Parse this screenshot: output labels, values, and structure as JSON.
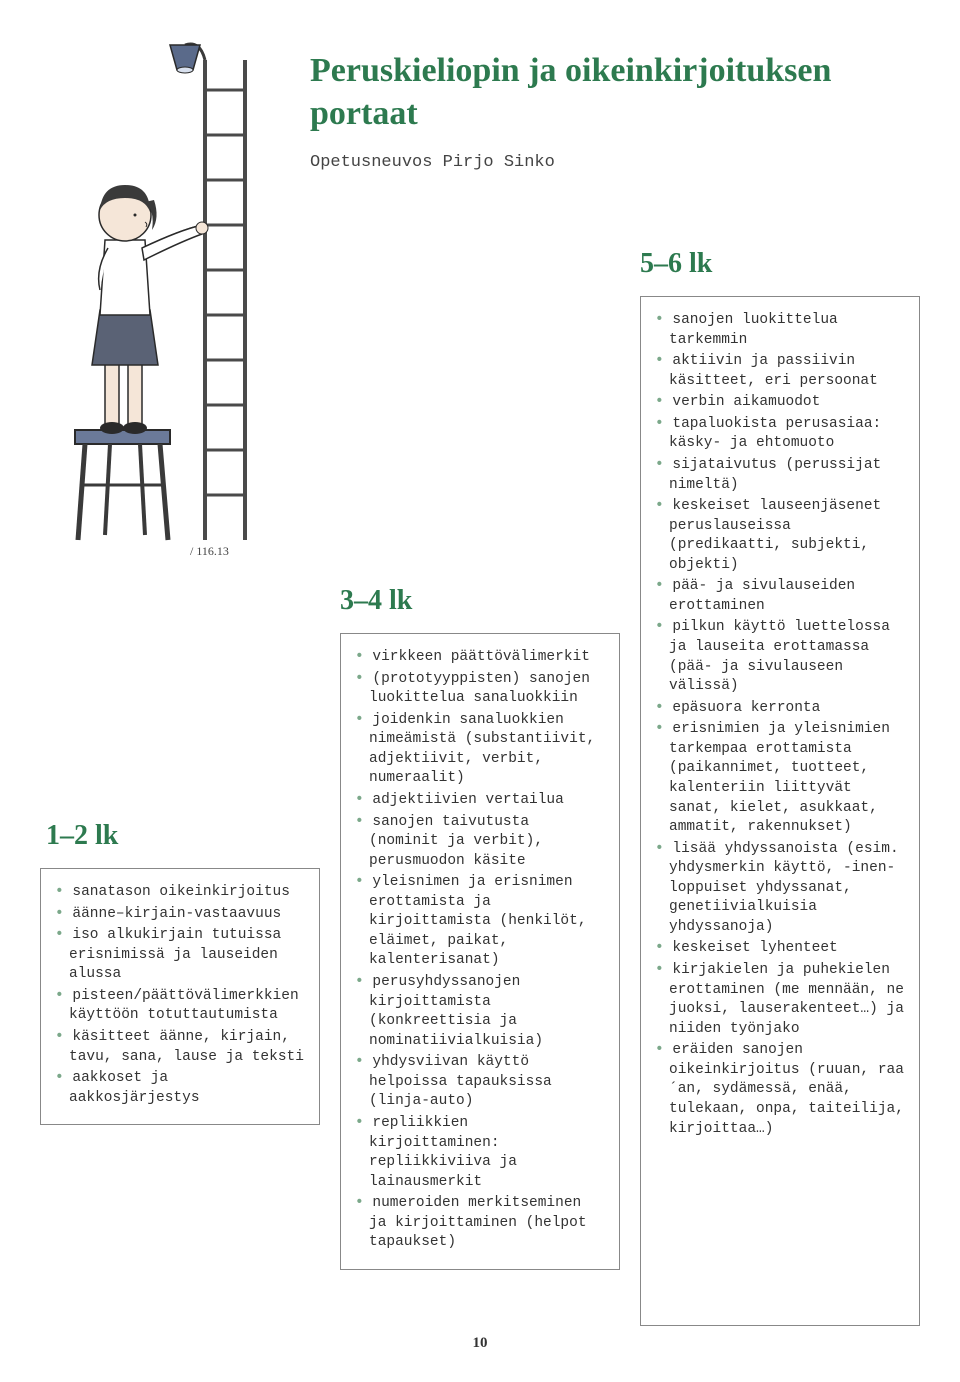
{
  "title": "Peruskieliopin ja oikeinkirjoituksen portaat",
  "author": "Opetusneuvos Pirjo Sinko",
  "pageNumber": "10",
  "illustration": {
    "skin": "#f5e6d8",
    "hair": "#3a3a3a",
    "shirt": "#ffffff",
    "skirt": "#5a6275",
    "shoes": "#2a2a2a",
    "stool_seat": "#6b7a99",
    "stool_legs": "#3a3a3a",
    "ladder": "#4a4a4a",
    "lamp_shade": "#5a6a8a",
    "lamp_arm": "#3a3a3a",
    "outline": "#2a2a2a",
    "signature": "/ 116.13"
  },
  "columns": [
    {
      "heading": "1–2 lk",
      "items": [
        "sanatason oikeinkirjoitus",
        "äänne–kirjain-vastaavuus",
        "iso alkukirjain tutuissa erisnimissä ja lauseiden alussa",
        "pisteen/päättövälimerkkien käyttöön totuttautumista",
        "käsitteet äänne, kirjain, tavu, sana, lause ja teksti",
        "aakkoset ja aakkosjärjestys"
      ]
    },
    {
      "heading": "3–4 lk",
      "items": [
        "virkkeen päättövälimerkit",
        "(prototyyppisten) sanojen luokittelua sanaluokkiin",
        "joidenkin sanaluokkien nimeämistä (substantiivit, adjektiivit, verbit, numeraalit)",
        "adjektiivien vertailua",
        "sanojen taivutusta (nominit ja verbit), perusmuodon käsite",
        "yleisnimen ja erisnimen erottamista ja kirjoittamista (henkilöt, eläimet, paikat, kalenterisanat)",
        "perusyhdyssanojen kirjoittamista (konkreettisia ja nominatiivialkuisia)",
        "yhdysviivan käyttö helpoissa tapauksissa (linja-auto)",
        "repliikkien kirjoittaminen: repliikkiviiva ja lainausmerkit",
        "numeroiden merkitseminen ja kirjoittaminen (helpot tapaukset)"
      ]
    },
    {
      "heading": "5–6 lk",
      "items": [
        "sanojen luokittelua tarkemmin",
        "aktiivin ja passiivin käsitteet, eri persoonat",
        "verbin aikamuodot",
        "tapaluokista perusasiaa: käsky- ja ehtomuoto",
        "sijataivutus (perussijat nimeltä)",
        "keskeiset lauseenjäsenet peruslauseissa (predikaatti, subjekti, objekti)",
        "pää- ja sivulauseiden erottaminen",
        "pilkun käyttö luettelossa ja lauseita erottamassa (pää- ja sivulauseen välissä)",
        "epäsuora kerronta",
        "erisnimien ja yleisnimien tarkempaa erottamista (paikannimet, tuotteet, kalenteriin liittyvät sanat, kielet, asukkaat, ammatit, rakennukset)",
        "lisää yhdyssanoista (esim. yhdysmerkin käyttö, -inen-loppuiset yhdyssanat, genetiivialkuisia yhdyssanoja)",
        "keskeiset lyhenteet",
        "kirjakielen ja puhekielen erottaminen (me mennään, ne juoksi, lauserakenteet…) ja niiden työnjako",
        "eräiden sanojen oikeinkirjoitus (ruuan, raa´an, sydämessä, enää, tulekaan, onpa, taiteilija, kirjoittaa…)"
      ]
    }
  ]
}
